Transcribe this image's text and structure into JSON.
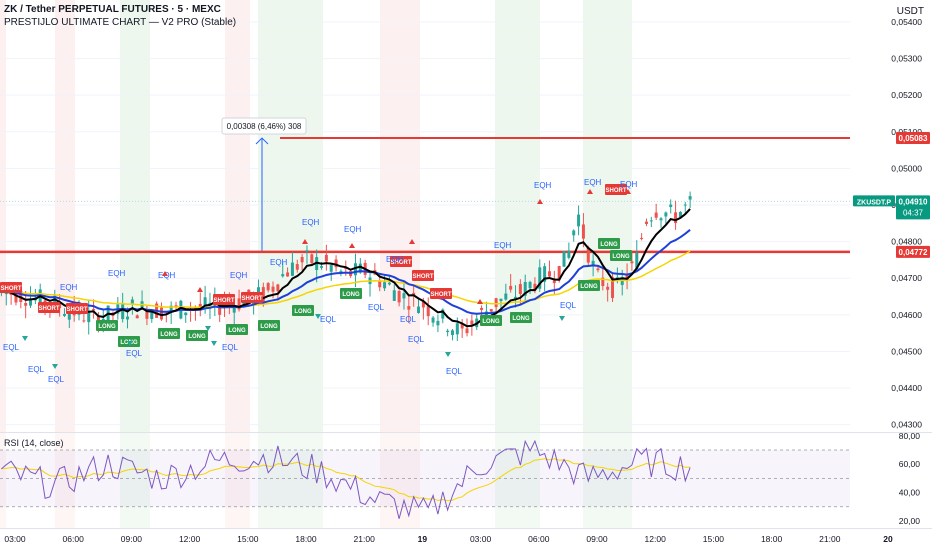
{
  "header": {
    "symbol_line": "ZK / Tether PERPETUAL FUTURES · 5 · MEXC",
    "indicator_line": "PRESTIJLO ULTIMATE CHART — V2 PRO (Stable)",
    "currency": "USDT"
  },
  "price_axis": {
    "ticks": [
      "0,05400",
      "0,05300",
      "0,05200",
      "0,05100",
      "0,05000",
      "0,04900",
      "0,04800",
      "0,04700",
      "0,04600",
      "0,04500",
      "0,04400",
      "0,04300"
    ],
    "tick_values": [
      0.054,
      0.053,
      0.052,
      0.051,
      0.05,
      0.049,
      0.048,
      0.047,
      0.046,
      0.045,
      0.044,
      0.043
    ]
  },
  "time_axis": {
    "ticks": [
      "03:00",
      "06:00",
      "09:00",
      "12:00",
      "15:00",
      "18:00",
      "21:00",
      "19",
      "03:00",
      "06:00",
      "09:00",
      "12:00",
      "15:00",
      "18:00",
      "21:00",
      "20"
    ]
  },
  "levels": {
    "upper": {
      "label": "0,05083",
      "value": 0.05083,
      "color": "#e53935"
    },
    "lower": {
      "label": "0,04772",
      "value": 0.04772,
      "color": "#e53935"
    }
  },
  "current_price": {
    "symbol": "ZKUSDT.P",
    "price": "0,04910",
    "countdown": "04:37",
    "value": 0.0491,
    "color": "#089981"
  },
  "measure": {
    "text": "0,00308 (6,46%) 308",
    "from": 0.04775,
    "to": 0.05083
  },
  "rsi": {
    "title": "RSI (14, close)",
    "ticks": [
      "80,00",
      "60,00",
      "40,00",
      "20,00"
    ],
    "tick_values": [
      80,
      60,
      40,
      20
    ],
    "band": [
      30,
      70
    ]
  },
  "labels": {
    "eqh": "EQH",
    "eql": "EQL",
    "short": "SHORT",
    "long": "LONG"
  },
  "colors": {
    "up": "#26a69a",
    "down": "#ef5350",
    "ema_black": "#000000",
    "ema_blue": "#1e40d8",
    "ema_yellow": "#f5d400",
    "rsi_line": "#7e57c2",
    "rsi_ma": "#f5d400",
    "bg_green": "#e8f5e9",
    "bg_red": "#fdecec",
    "label_green": "#2e9b4a",
    "label_red": "#e53935",
    "eq_text": "#2962ff"
  },
  "chart_data": {
    "type": "line",
    "description_axes": "price in USDT vs time, 5-minute candles",
    "x": [
      "03:00",
      "06:00",
      "09:00",
      "12:00",
      "15:00",
      "18:00",
      "21:00",
      "19",
      "03:00",
      "06:00",
      "09:00",
      "12:00"
    ],
    "series": [
      {
        "values": [
          0.0466,
          0.0463,
          0.0461,
          0.0462,
          0.0465,
          0.0472,
          0.0471,
          0.0466,
          0.0463,
          0.0472,
          0.047,
          0.0491
        ]
      }
    ],
    "ylim": [
      0.0428,
      0.0546
    ],
    "rsi_series": [
      55,
      45,
      60,
      50,
      62,
      65,
      55,
      35,
      25,
      60,
      70,
      50,
      62,
      58
    ],
    "rsi_ylim": [
      15,
      82
    ]
  }
}
